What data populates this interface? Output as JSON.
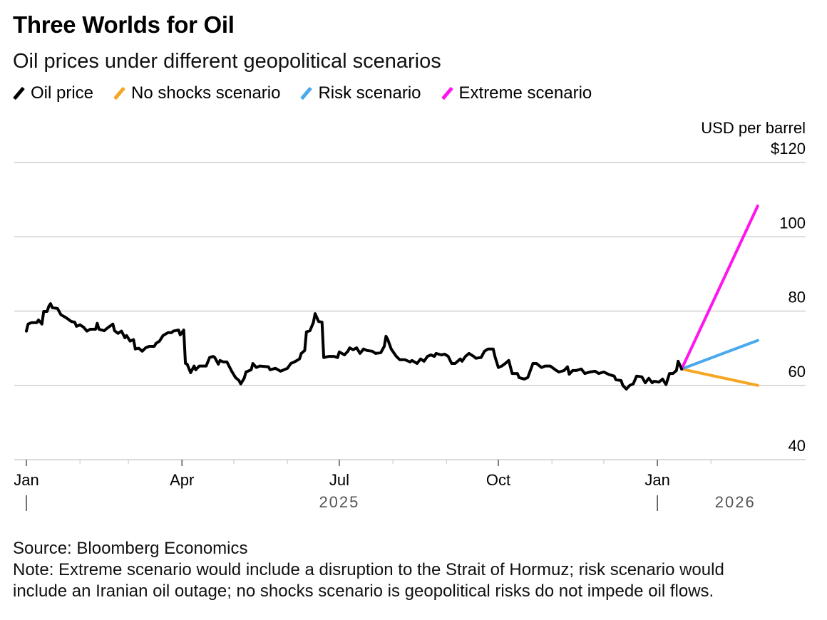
{
  "header": {
    "title": "Three Worlds for Oil",
    "subtitle": "Oil prices under different geopolitical scenarios"
  },
  "legend": [
    {
      "label": "Oil price",
      "color": "#000000"
    },
    {
      "label": "No shocks scenario",
      "color": "#f5a623"
    },
    {
      "label": "Risk scenario",
      "color": "#4aa8ec"
    },
    {
      "label": "Extreme scenario",
      "color": "#ff14f0"
    }
  ],
  "footer": {
    "source": "Source: Bloomberg Economics",
    "note_line1": "Note: Extreme scenario would include a disruption to the Strait of Hormuz; risk scenario would",
    "note_line2": "include an Iranian oil outage; no shocks scenario is geopolitical risks do not impede oil flows."
  },
  "chart_data": {
    "type": "line",
    "title": "Three Worlds for Oil",
    "subtitle": "Oil prices under different geopolitical scenarios",
    "ylabel": "USD per barrel",
    "xlabel": "",
    "ylim": [
      40,
      120
    ],
    "y_ticks": [
      {
        "value": 120,
        "label": "$120"
      },
      {
        "value": 100,
        "label": "100"
      },
      {
        "value": 80,
        "label": "80"
      },
      {
        "value": 60,
        "label": "60"
      },
      {
        "value": 40,
        "label": "40"
      }
    ],
    "x_unit": "days since 2025-01-01",
    "xlim": [
      0,
      443
    ],
    "x_major_ticks": [
      {
        "day": 0,
        "label": "Jan"
      },
      {
        "day": 90,
        "label": "Apr"
      },
      {
        "day": 181,
        "label": "Jul"
      },
      {
        "day": 273,
        "label": "Oct"
      },
      {
        "day": 365,
        "label": "Jan"
      }
    ],
    "x_minor_ticks": [
      31,
      59,
      120,
      151,
      212,
      243,
      304,
      334,
      396
    ],
    "year_labels": [
      {
        "label": "2025",
        "day": 181,
        "divider_day": 0
      },
      {
        "label": "2026",
        "day": 410,
        "divider_day": 365
      }
    ],
    "grid": true,
    "legend_position": "top-left",
    "series": [
      {
        "name": "Oil price",
        "color": "#000000",
        "points": [
          [
            0,
            74.6
          ],
          [
            1,
            76.5
          ],
          [
            3,
            76.9
          ],
          [
            6,
            76.9
          ],
          [
            7,
            77.6
          ],
          [
            9,
            76.5
          ],
          [
            10,
            79.9
          ],
          [
            12,
            79.9
          ],
          [
            13,
            81.3
          ],
          [
            14,
            82.0
          ],
          [
            15,
            80.9
          ],
          [
            18,
            80.7
          ],
          [
            20,
            79.0
          ],
          [
            23,
            78.2
          ],
          [
            26,
            77.2
          ],
          [
            28,
            77.0
          ],
          [
            29,
            75.9
          ],
          [
            31,
            76.3
          ],
          [
            33,
            75.7
          ],
          [
            35,
            74.6
          ],
          [
            37,
            75.1
          ],
          [
            40,
            75.1
          ],
          [
            41,
            76.7
          ],
          [
            42,
            75.1
          ],
          [
            45,
            74.7
          ],
          [
            47,
            75.5
          ],
          [
            50,
            76.5
          ],
          [
            51,
            74.7
          ],
          [
            53,
            74.0
          ],
          [
            55,
            74.6
          ],
          [
            57,
            72.8
          ],
          [
            58,
            73.4
          ],
          [
            60,
            71.9
          ],
          [
            62,
            72.3
          ],
          [
            63,
            69.8
          ],
          [
            65,
            70.0
          ],
          [
            67,
            69.2
          ],
          [
            69,
            70.1
          ],
          [
            71,
            70.5
          ],
          [
            74,
            70.5
          ],
          [
            75,
            71.3
          ],
          [
            77,
            71.9
          ],
          [
            79,
            73.4
          ],
          [
            82,
            74.2
          ],
          [
            84,
            74.2
          ],
          [
            85,
            74.6
          ],
          [
            88,
            74.9
          ],
          [
            89,
            73.6
          ],
          [
            91,
            74.9
          ],
          [
            92,
            65.9
          ],
          [
            93,
            65.7
          ],
          [
            95,
            63.4
          ],
          [
            97,
            65.2
          ],
          [
            98,
            64.2
          ],
          [
            100,
            65.2
          ],
          [
            104,
            65.2
          ],
          [
            106,
            67.5
          ],
          [
            108,
            67.8
          ],
          [
            109,
            67.5
          ],
          [
            111,
            65.7
          ],
          [
            112,
            66.7
          ],
          [
            114,
            66.3
          ],
          [
            116,
            66.3
          ],
          [
            119,
            63.6
          ],
          [
            121,
            62.1
          ],
          [
            123,
            61.3
          ],
          [
            124,
            60.4
          ],
          [
            126,
            61.9
          ],
          [
            127,
            63.6
          ],
          [
            130,
            64.2
          ],
          [
            131,
            65.9
          ],
          [
            133,
            64.8
          ],
          [
            135,
            65.2
          ],
          [
            140,
            65.0
          ],
          [
            141,
            64.2
          ],
          [
            144,
            64.6
          ],
          [
            147,
            63.8
          ],
          [
            149,
            64.2
          ],
          [
            151,
            64.6
          ],
          [
            153,
            65.9
          ],
          [
            155,
            66.3
          ],
          [
            158,
            67.1
          ],
          [
            159,
            68.6
          ],
          [
            161,
            69.4
          ],
          [
            162,
            74.4
          ],
          [
            164,
            74.7
          ],
          [
            166,
            76.9
          ],
          [
            167,
            79.3
          ],
          [
            169,
            77.2
          ],
          [
            171,
            77.0
          ],
          [
            172,
            67.5
          ],
          [
            175,
            67.8
          ],
          [
            178,
            67.8
          ],
          [
            180,
            67.5
          ],
          [
            181,
            69.0
          ],
          [
            184,
            68.2
          ],
          [
            186,
            69.2
          ],
          [
            187,
            70.1
          ],
          [
            189,
            69.6
          ],
          [
            191,
            70.1
          ],
          [
            193,
            68.6
          ],
          [
            195,
            69.8
          ],
          [
            197,
            69.4
          ],
          [
            200,
            69.2
          ],
          [
            202,
            68.6
          ],
          [
            205,
            68.8
          ],
          [
            207,
            70.5
          ],
          [
            208,
            73.2
          ],
          [
            209,
            72.4
          ],
          [
            211,
            69.8
          ],
          [
            214,
            67.8
          ],
          [
            216,
            66.9
          ],
          [
            219,
            66.9
          ],
          [
            222,
            66.3
          ],
          [
            223,
            66.7
          ],
          [
            226,
            65.9
          ],
          [
            228,
            67.1
          ],
          [
            230,
            66.5
          ],
          [
            232,
            67.8
          ],
          [
            234,
            68.2
          ],
          [
            236,
            67.8
          ],
          [
            237,
            68.6
          ],
          [
            240,
            68.2
          ],
          [
            242,
            68.4
          ],
          [
            244,
            67.8
          ],
          [
            246,
            65.9
          ],
          [
            248,
            65.9
          ],
          [
            251,
            67.1
          ],
          [
            252,
            66.5
          ],
          [
            254,
            67.8
          ],
          [
            256,
            68.6
          ],
          [
            259,
            67.7
          ],
          [
            260,
            67.3
          ],
          [
            263,
            67.5
          ],
          [
            265,
            69.2
          ],
          [
            267,
            69.8
          ],
          [
            270,
            69.8
          ],
          [
            271,
            67.8
          ],
          [
            273,
            64.8
          ],
          [
            275,
            65.2
          ],
          [
            277,
            65.9
          ],
          [
            279,
            66.7
          ],
          [
            281,
            63.2
          ],
          [
            284,
            63.2
          ],
          [
            285,
            62.1
          ],
          [
            288,
            61.7
          ],
          [
            290,
            62.1
          ],
          [
            293,
            65.9
          ],
          [
            295,
            65.9
          ],
          [
            298,
            64.8
          ],
          [
            300,
            65.2
          ],
          [
            303,
            65.2
          ],
          [
            306,
            64.2
          ],
          [
            308,
            63.6
          ],
          [
            311,
            64.0
          ],
          [
            313,
            65.0
          ],
          [
            314,
            63.0
          ],
          [
            316,
            64.0
          ],
          [
            318,
            64.0
          ],
          [
            321,
            64.4
          ],
          [
            323,
            63.2
          ],
          [
            326,
            63.6
          ],
          [
            329,
            63.8
          ],
          [
            331,
            63.2
          ],
          [
            334,
            63.6
          ],
          [
            337,
            62.9
          ],
          [
            340,
            62.5
          ],
          [
            341,
            61.5
          ],
          [
            344,
            61.3
          ],
          [
            345,
            60.0
          ],
          [
            347,
            59.0
          ],
          [
            349,
            60.0
          ],
          [
            351,
            60.4
          ],
          [
            353,
            62.5
          ],
          [
            356,
            62.3
          ],
          [
            358,
            60.7
          ],
          [
            360,
            61.9
          ],
          [
            362,
            60.7
          ],
          [
            363,
            61.1
          ],
          [
            366,
            60.9
          ],
          [
            368,
            61.7
          ],
          [
            370,
            60.2
          ],
          [
            372,
            63.2
          ],
          [
            374,
            63.2
          ],
          [
            376,
            64.0
          ],
          [
            377,
            66.5
          ],
          [
            379,
            64.4
          ]
        ]
      },
      {
        "name": "No shocks scenario",
        "color": "#f5a623",
        "points": [
          [
            379,
            64.4
          ],
          [
            423,
            60.0
          ]
        ]
      },
      {
        "name": "Risk scenario",
        "color": "#4aa8ec",
        "points": [
          [
            379,
            64.4
          ],
          [
            423,
            72.1
          ]
        ]
      },
      {
        "name": "Extreme scenario",
        "color": "#ff14f0",
        "points": [
          [
            379,
            64.4
          ],
          [
            423,
            108.3
          ]
        ]
      }
    ]
  }
}
